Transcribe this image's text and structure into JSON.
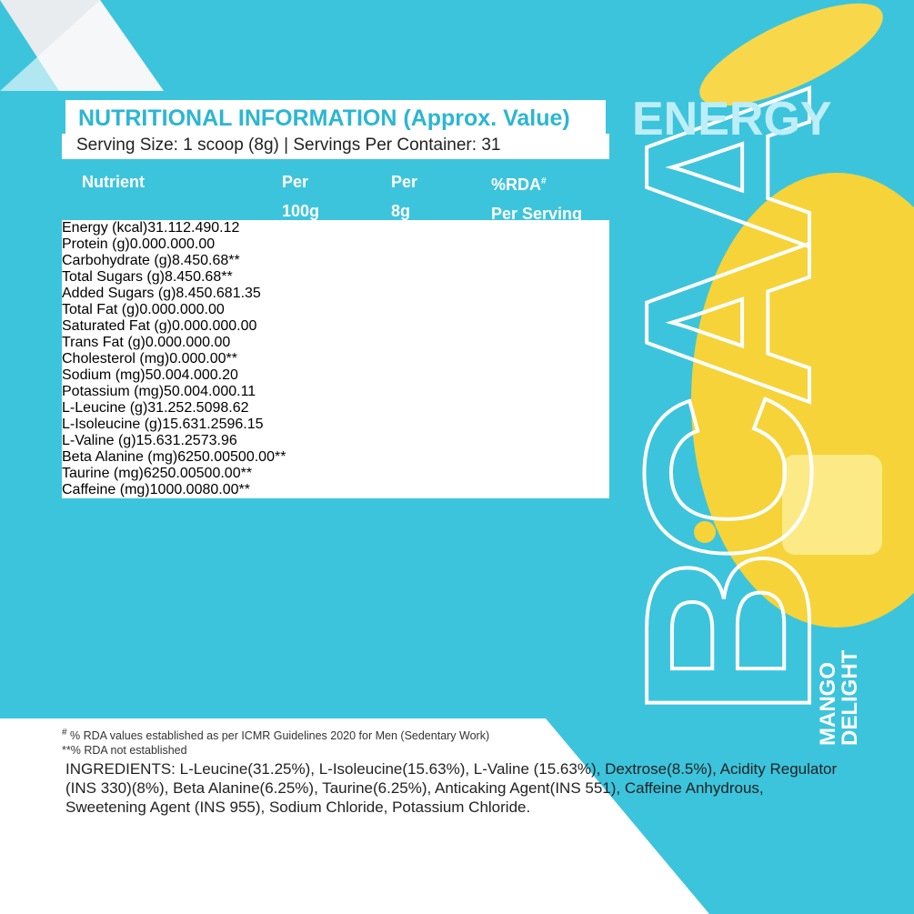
{
  "brand": {
    "tagline": "ENERGY",
    "product": "BCAA",
    "flavor": [
      "MANGO",
      "DELIGHT"
    ]
  },
  "header": {
    "title": "NUTRITIONAL INFORMATION (Approx. Value)",
    "serving": "Serving Size: 1 scoop (8g) | Servings Per Container: 31"
  },
  "table": {
    "columns": [
      [
        "Nutrient"
      ],
      [
        "Per",
        "100g"
      ],
      [
        "Per",
        "8g"
      ],
      [
        {
          "text": "%RDA",
          "mark": "#"
        },
        "Per Serving"
      ]
    ],
    "rows": [
      [
        "Energy (kcal)",
        "31.11",
        "2.49",
        "0.12"
      ],
      [
        "Protein (g)",
        "0.00",
        "0.00",
        "0.00"
      ],
      [
        "Carbohydrate (g)",
        "8.45",
        "0.68",
        "**"
      ],
      [
        "Total Sugars (g)",
        "8.45",
        "0.68",
        "**"
      ],
      [
        "Added Sugars (g)",
        "8.45",
        "0.68",
        "1.35"
      ],
      [
        "Total Fat (g)",
        "0.00",
        "0.00",
        "0.00"
      ],
      [
        "Saturated Fat (g)",
        "0.00",
        "0.00",
        "0.00"
      ],
      [
        "Trans Fat (g)",
        "0.00",
        "0.00",
        "0.00"
      ],
      [
        "Cholesterol (mg)",
        "0.00",
        "0.00",
        "**"
      ],
      [
        "Sodium (mg)",
        "50.00",
        "4.00",
        "0.20"
      ],
      [
        "Potassium (mg)",
        "50.00",
        "4.00",
        "0.11"
      ],
      [
        "L-Leucine (g)",
        "31.25",
        "2.50",
        "98.62"
      ],
      [
        "L-Isoleucine (g)",
        "15.63",
        "1.25",
        "96.15"
      ],
      [
        "L-Valine (g)",
        "15.63",
        "1.25",
        "73.96"
      ],
      [
        "Beta Alanine (mg)",
        "6250.00",
        "500.00",
        "**"
      ],
      [
        "Taurine (mg)",
        "6250.00",
        "500.00",
        "**"
      ],
      [
        "Caffeine (mg)",
        "1000.00",
        "80.00",
        "**"
      ]
    ]
  },
  "footnotes": [
    {
      "mark": "#",
      "text": " % RDA values established as per ICMR Guidelines 2020 for Men (Sedentary Work)"
    },
    "**% RDA not established"
  ],
  "ingredients": "INGREDIENTS: L-Leucine(31.25%), L-Isoleucine(15.63%), L-Valine (15.63%), Dextrose(8.5%), Acidity Regulator (INS 330)(8%), Beta Alanine(6.25%), Taurine(6.25%), Anticaking Agent(INS 551), Caffeine Anhydrous, Sweetening Agent (INS 955), Sodium Chloride, Potassium Chloride."
}
